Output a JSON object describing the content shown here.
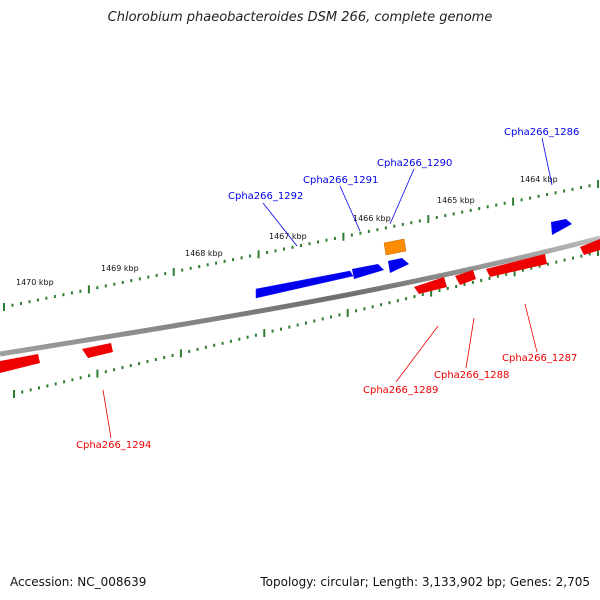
{
  "title": "Chlorobium phaeobacteroides DSM 266, complete genome",
  "footer": {
    "accession": "Accession: NC_008639",
    "topology": "Topology: circular; Length: 3,133,902 bp; Genes: 2,705"
  },
  "colors": {
    "forward_gene": "#0000ee",
    "reverse_gene": "#ee0000",
    "other_feature": "#ff8c00",
    "backbone": "#808080",
    "tick": "#2e7d32"
  },
  "scale_labels": [
    "1470 kbp",
    "1469 kbp",
    "1468 kbp",
    "1467 kbp",
    "1466 kbp",
    "1465 kbp",
    "1464 kbp"
  ],
  "gene_labels": {
    "forward": [
      "Cpha266_1292",
      "Cpha266_1291",
      "Cpha266_1290",
      "Cpha266_1286"
    ],
    "reverse": [
      "Cpha266_1294",
      "Cpha266_1289",
      "Cpha266_1288",
      "Cpha266_1287"
    ]
  }
}
